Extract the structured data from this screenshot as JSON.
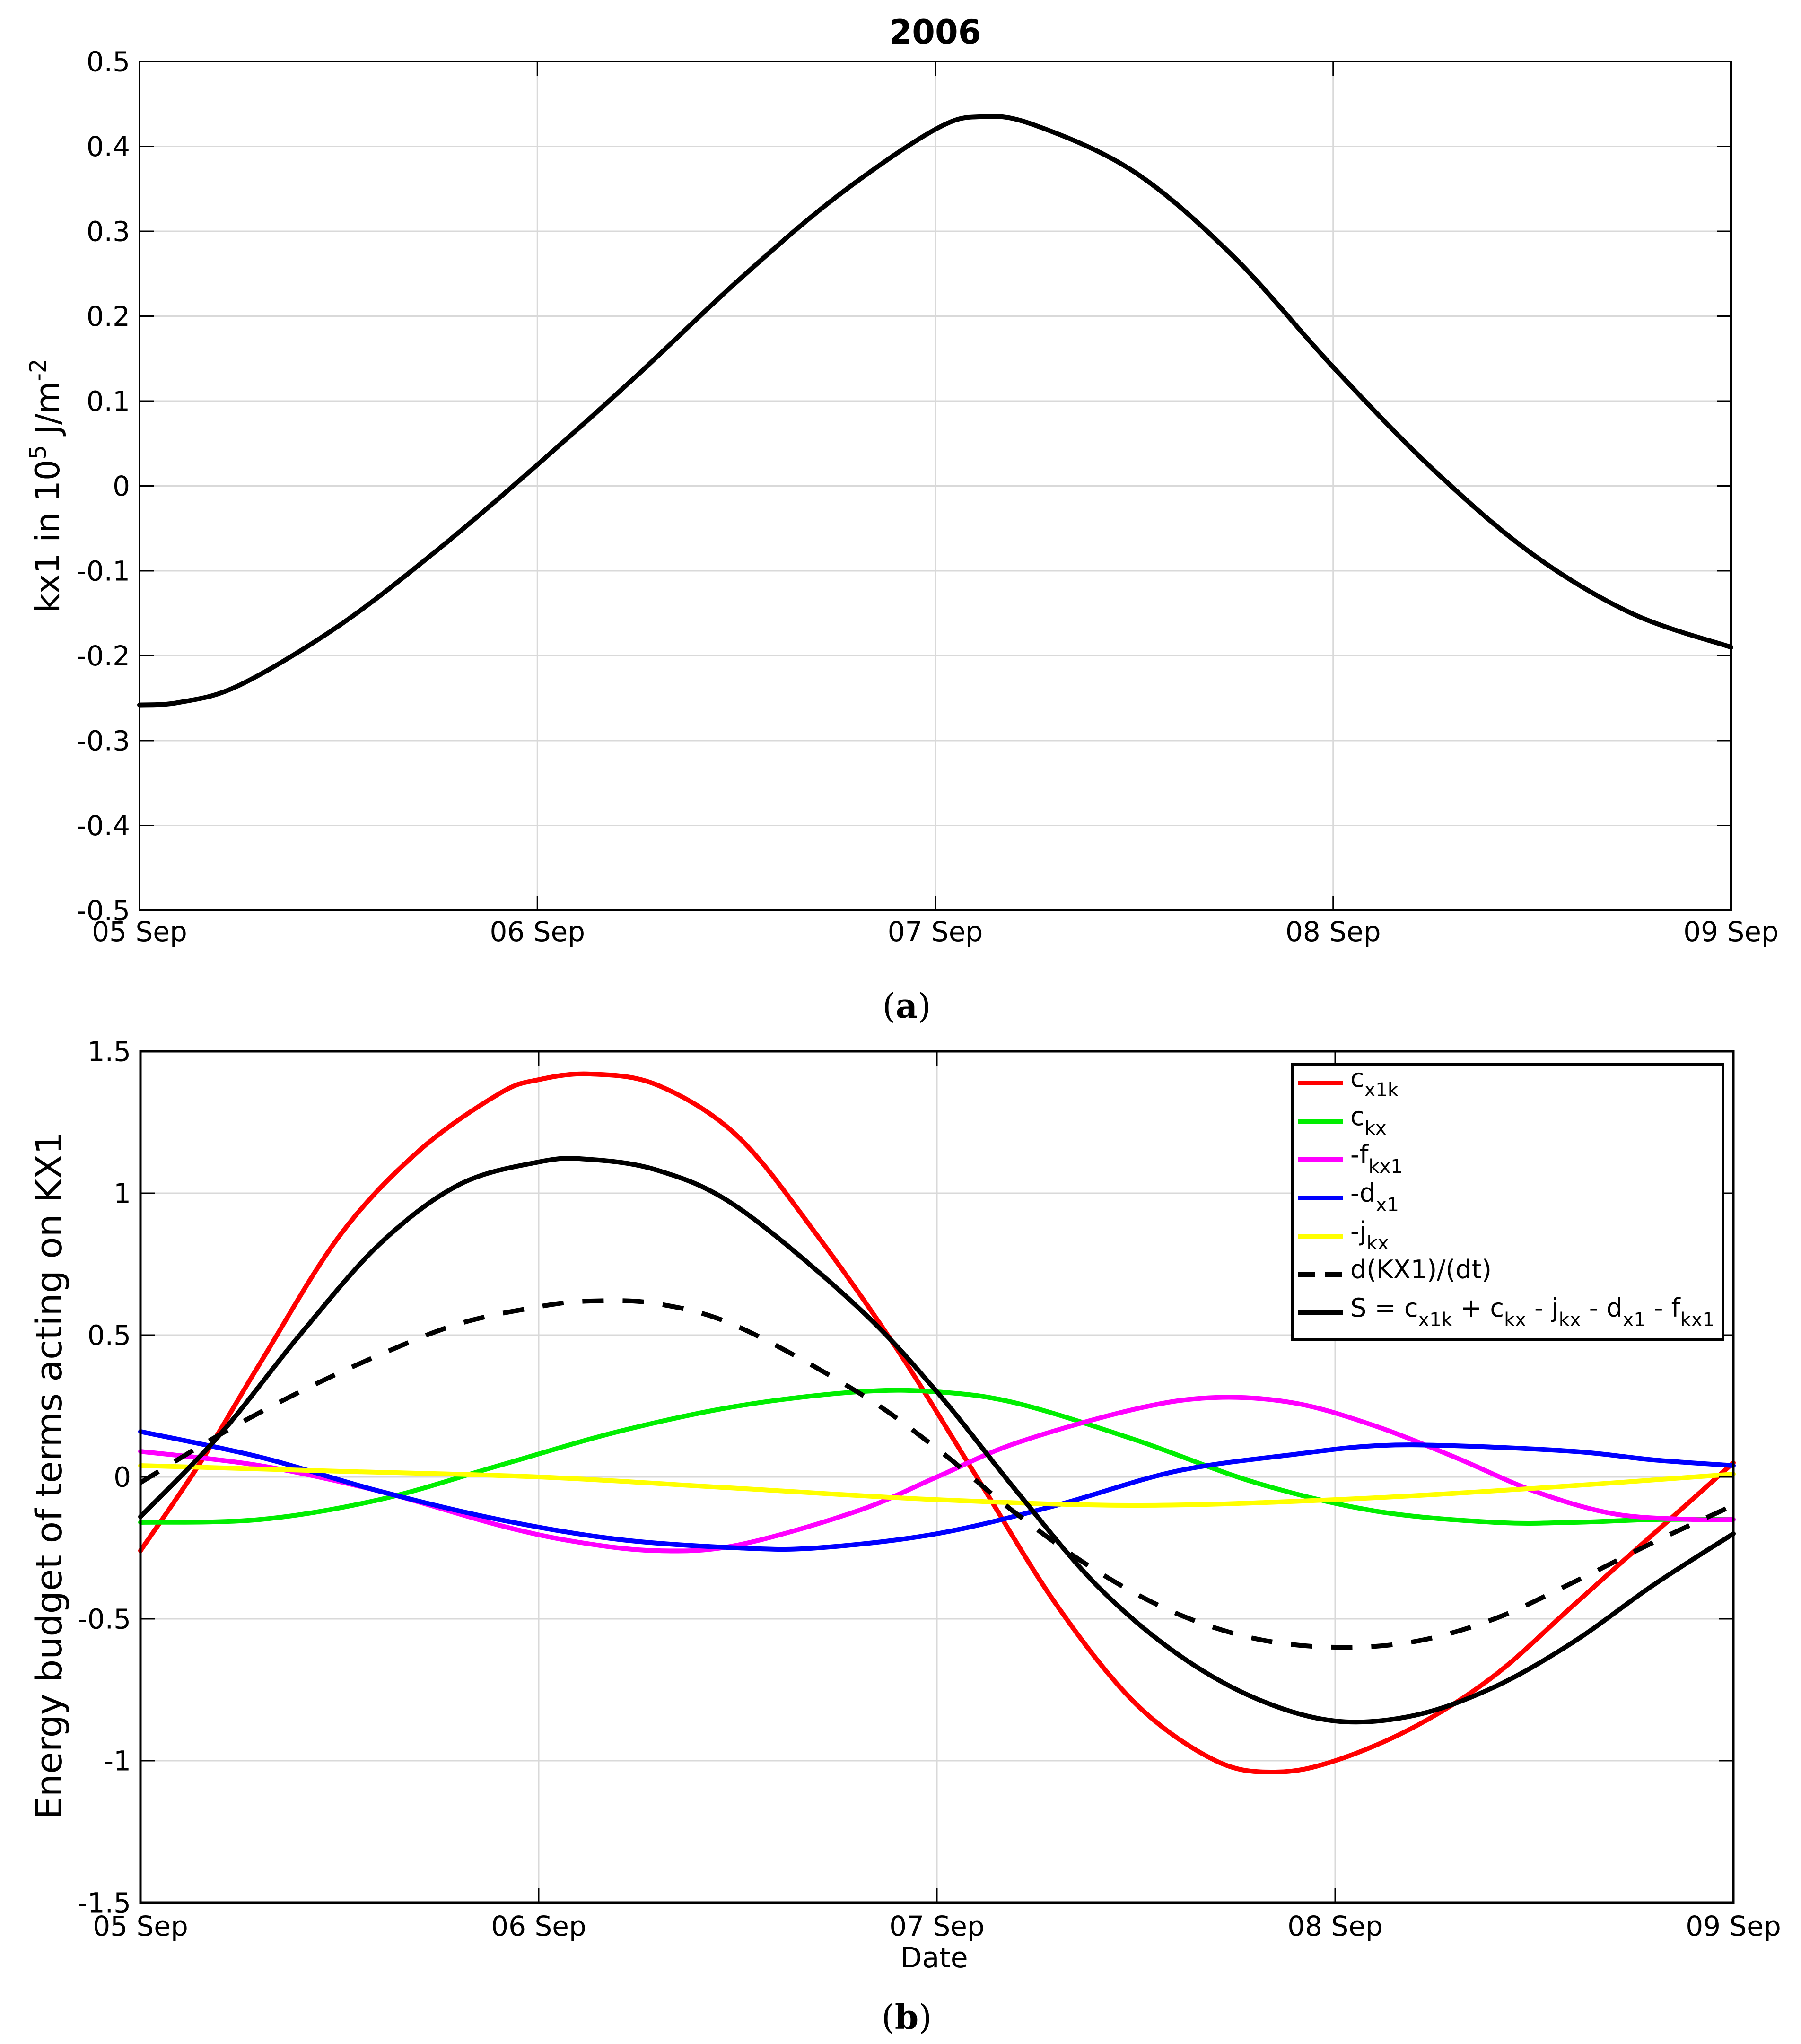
{
  "captions": {
    "a_open": "(",
    "a_letter": "a",
    "a_close": ")",
    "b_open": "(",
    "b_letter": "b",
    "b_close": ")"
  },
  "chart_data": [
    {
      "type": "line",
      "title": "2006",
      "ylabel": "kx1   in  10^5 J/m^-2",
      "ylabel_parts": {
        "main": "kx1   in  10",
        "sup1": "5",
        "mid": " J/m",
        "sup2": "-2"
      },
      "xlabel": "",
      "x_tick_labels": [
        "05 Sep",
        "06 Sep",
        "07 Sep",
        "08 Sep",
        "09 Sep"
      ],
      "x_ticks_days": [
        0,
        1,
        2,
        3,
        4
      ],
      "xlim": [
        0,
        4
      ],
      "ylim": [
        -0.5,
        0.5
      ],
      "y_ticks": [
        -0.5,
        -0.4,
        -0.3,
        -0.2,
        -0.1,
        0,
        0.1,
        0.2,
        0.3,
        0.4,
        0.5
      ],
      "y_tick_labels": [
        "-0.5",
        "-0.4",
        "-0.3",
        "-0.2",
        "-0.1",
        "0",
        "0.1",
        "0.2",
        "0.3",
        "0.4",
        "0.5"
      ],
      "grid": true,
      "series": [
        {
          "name": "kx1",
          "color": "#000000",
          "style": "solid",
          "x": [
            0,
            0.1,
            0.25,
            0.5,
            0.75,
            1.0,
            1.25,
            1.5,
            1.75,
            2.0,
            2.12,
            2.25,
            2.5,
            2.75,
            3.0,
            3.25,
            3.5,
            3.75,
            4.0
          ],
          "y": [
            -0.258,
            -0.255,
            -0.235,
            -0.165,
            -0.075,
            0.025,
            0.13,
            0.24,
            0.34,
            0.42,
            0.435,
            0.425,
            0.37,
            0.27,
            0.14,
            0.02,
            -0.08,
            -0.15,
            -0.19
          ]
        }
      ]
    },
    {
      "type": "line",
      "title": "",
      "ylabel": "Energy budget of terms acting on KX1",
      "xlabel": "Date",
      "x_tick_labels": [
        "05 Sep",
        "06 Sep",
        "07 Sep",
        "08 Sep",
        "09 Sep"
      ],
      "x_ticks_days": [
        0,
        1,
        2,
        3,
        4
      ],
      "xlim": [
        0,
        4
      ],
      "ylim": [
        -1.5,
        1.5
      ],
      "y_ticks": [
        -1.5,
        -1,
        -0.5,
        0,
        0.5,
        1,
        1.5
      ],
      "y_tick_labels": [
        "-1.5",
        "-1",
        "-0.5",
        "0",
        "0.5",
        "1",
        "1.5"
      ],
      "grid": true,
      "legend_position": "top-right",
      "series": [
        {
          "name": "c_x1k",
          "legend": {
            "base": "c",
            "sub": "x1k",
            "rest": ""
          },
          "color": "#ff0000",
          "style": "solid",
          "x": [
            0,
            0.15,
            0.3,
            0.5,
            0.7,
            0.9,
            1.0,
            1.13,
            1.3,
            1.5,
            1.7,
            1.9,
            2.1,
            2.3,
            2.5,
            2.7,
            2.85,
            3.0,
            3.2,
            3.4,
            3.6,
            3.8,
            4.0
          ],
          "y": [
            -0.26,
            0.05,
            0.4,
            0.85,
            1.15,
            1.35,
            1.4,
            1.42,
            1.38,
            1.2,
            0.85,
            0.45,
            0.0,
            -0.45,
            -0.8,
            -1.0,
            -1.04,
            -1.0,
            -0.88,
            -0.7,
            -0.45,
            -0.2,
            0.05
          ]
        },
        {
          "name": "c_kx",
          "legend": {
            "base": "c",
            "sub": "kx",
            "rest": ""
          },
          "color": "#00ee00",
          "style": "solid",
          "x": [
            0,
            0.3,
            0.6,
            0.9,
            1.2,
            1.5,
            1.8,
            2.0,
            2.2,
            2.5,
            2.8,
            3.1,
            3.4,
            3.6,
            3.8,
            4.0
          ],
          "y": [
            -0.16,
            -0.15,
            -0.08,
            0.04,
            0.16,
            0.25,
            0.3,
            0.3,
            0.26,
            0.13,
            -0.02,
            -0.12,
            -0.16,
            -0.16,
            -0.15,
            -0.15
          ]
        },
        {
          "name": "-f_kx1",
          "legend": {
            "base": "-f",
            "sub": "kx1",
            "rest": ""
          },
          "color": "#ff00ff",
          "style": "solid",
          "x": [
            0,
            0.3,
            0.6,
            0.9,
            1.1,
            1.3,
            1.5,
            1.8,
            2.0,
            2.2,
            2.5,
            2.7,
            2.9,
            3.1,
            3.3,
            3.5,
            3.7,
            3.9,
            4.0
          ],
          "y": [
            0.09,
            0.04,
            -0.05,
            -0.17,
            -0.23,
            -0.26,
            -0.24,
            -0.12,
            0.0,
            0.12,
            0.24,
            0.28,
            0.26,
            0.18,
            0.07,
            -0.05,
            -0.13,
            -0.15,
            -0.15
          ]
        },
        {
          "name": "-d_x1",
          "legend": {
            "base": "-d",
            "sub": "x1",
            "rest": ""
          },
          "color": "#0000ff",
          "style": "solid",
          "x": [
            0,
            0.3,
            0.6,
            0.9,
            1.2,
            1.5,
            1.7,
            2.0,
            2.3,
            2.6,
            2.9,
            3.1,
            3.3,
            3.6,
            3.8,
            4.0
          ],
          "y": [
            0.16,
            0.07,
            -0.05,
            -0.15,
            -0.22,
            -0.25,
            -0.25,
            -0.2,
            -0.1,
            0.02,
            0.08,
            0.11,
            0.11,
            0.09,
            0.06,
            0.04
          ]
        },
        {
          "name": "-j_kx",
          "legend": {
            "base": "-j",
            "sub": "kx",
            "rest": ""
          },
          "color": "#ffff00",
          "style": "solid",
          "x": [
            0,
            0.5,
            1.0,
            1.5,
            2.0,
            2.5,
            3.0,
            3.5,
            4.0
          ],
          "y": [
            0.04,
            0.02,
            0.0,
            -0.04,
            -0.08,
            -0.1,
            -0.08,
            -0.04,
            0.01
          ]
        },
        {
          "name": "d(KX1)/(dt)",
          "legend": {
            "base": "d(KX1)/(dt)",
            "sub": "",
            "rest": ""
          },
          "color": "#000000",
          "style": "dashed",
          "x": [
            0,
            0.2,
            0.4,
            0.6,
            0.8,
            1.0,
            1.13,
            1.3,
            1.5,
            1.8,
            2.0,
            2.2,
            2.4,
            2.6,
            2.8,
            3.0,
            3.2,
            3.4,
            3.6,
            3.8,
            4.0
          ],
          "y": [
            -0.02,
            0.15,
            0.3,
            0.43,
            0.54,
            0.6,
            0.62,
            0.61,
            0.53,
            0.3,
            0.1,
            -0.13,
            -0.33,
            -0.48,
            -0.57,
            -0.6,
            -0.58,
            -0.5,
            -0.37,
            -0.23,
            -0.1
          ]
        },
        {
          "name": "S",
          "legend": {
            "base": "S = c",
            "sub": "x1k",
            "rest": "+ c|kx|- j|kx|- d|x1|- f|kx1"
          },
          "legend_text": "S = c_x1k + c_kx - j_kx - d_x1 - f_kx1",
          "color": "#000000",
          "style": "solid",
          "x": [
            0,
            0.2,
            0.4,
            0.6,
            0.8,
            1.0,
            1.12,
            1.3,
            1.5,
            1.8,
            2.0,
            2.2,
            2.4,
            2.6,
            2.8,
            3.0,
            3.2,
            3.4,
            3.6,
            3.8,
            4.0
          ],
          "y": [
            -0.14,
            0.15,
            0.5,
            0.82,
            1.03,
            1.11,
            1.12,
            1.08,
            0.95,
            0.6,
            0.3,
            -0.05,
            -0.38,
            -0.62,
            -0.78,
            -0.86,
            -0.84,
            -0.74,
            -0.58,
            -0.38,
            -0.2
          ]
        }
      ]
    }
  ]
}
